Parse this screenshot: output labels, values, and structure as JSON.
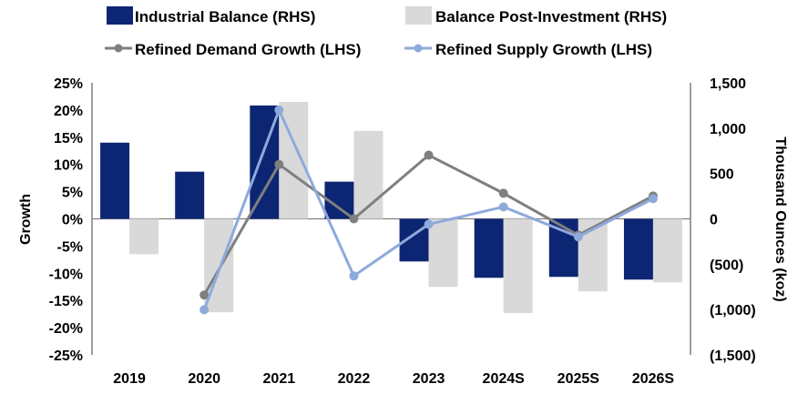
{
  "chart_data": {
    "type": "bar",
    "categories": [
      "2019",
      "2020",
      "2021",
      "2022",
      "2023",
      "2024S",
      "2025S",
      "2026S"
    ],
    "left_axis": {
      "label": "Growth",
      "range": [
        -0.25,
        0.25
      ],
      "step": 0.05,
      "tick_labels": [
        "25%",
        "20%",
        "15%",
        "10%",
        "5%",
        "0%",
        "-5%",
        "-10%",
        "-15%",
        "-20%",
        "-25%"
      ]
    },
    "right_axis": {
      "label": "Thousand Ounces (koz)",
      "range": [
        -1500,
        1500
      ],
      "step": 500,
      "tick_labels": [
        "1,500",
        "1,000",
        "500",
        "0",
        "(500)",
        "(1,000)",
        "(1,500)"
      ]
    },
    "legend_position": "top",
    "grid": false,
    "bar_series": [
      {
        "name": "Industrial Balance (RHS)",
        "axis": "right",
        "color": "#0d2673",
        "values": [
          840,
          520,
          1250,
          410,
          -470,
          -650,
          -640,
          -670
        ]
      },
      {
        "name": "Balance Post-Investment (RHS)",
        "axis": "right",
        "color": "#d9d9d9",
        "values": [
          -390,
          -1030,
          1290,
          970,
          -750,
          -1040,
          -800,
          -700
        ]
      }
    ],
    "line_series": [
      {
        "name": "Refined Demand Growth (LHS)",
        "axis": "left",
        "color": "#7f7f7f",
        "values": [
          null,
          -0.14,
          0.1,
          0.0,
          0.117,
          0.047,
          -0.03,
          0.042
        ]
      },
      {
        "name": "Refined Supply Growth (LHS)",
        "axis": "left",
        "color": "#8eaadb",
        "values": [
          null,
          -0.167,
          0.2,
          -0.105,
          -0.01,
          0.022,
          -0.033,
          0.037
        ]
      }
    ]
  }
}
